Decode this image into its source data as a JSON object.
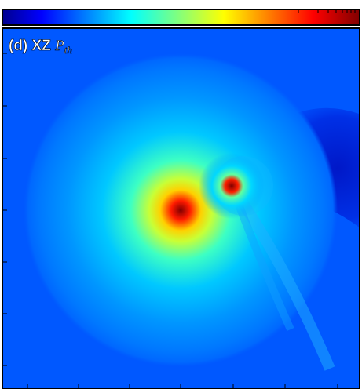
{
  "panel": {
    "label": "(d) XZ",
    "quantity": "P",
    "subscript": "th"
  }
}
